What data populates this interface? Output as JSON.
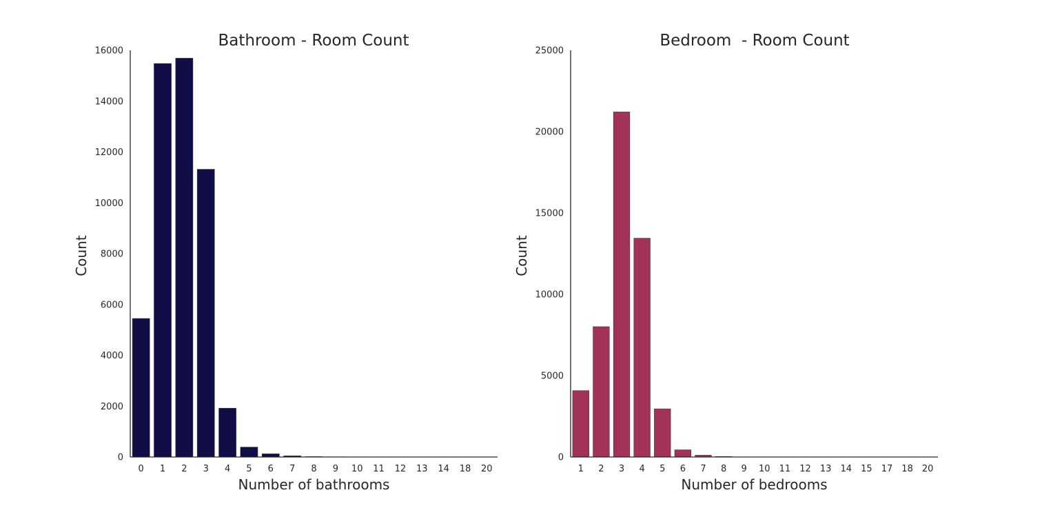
{
  "chart_data": [
    {
      "type": "bar",
      "title": "Bathroom - Room Count",
      "xlabel": "Number of bathrooms",
      "ylabel": "Count",
      "categories": [
        "0",
        "1",
        "2",
        "3",
        "4",
        "5",
        "6",
        "7",
        "8",
        "9",
        "10",
        "11",
        "12",
        "13",
        "14",
        "18",
        "20"
      ],
      "values": [
        5450,
        15480,
        15690,
        11320,
        1920,
        390,
        125,
        45,
        15,
        8,
        3,
        2,
        1,
        1,
        1,
        1,
        1
      ],
      "ylim": [
        0,
        16000
      ],
      "yticks": [
        "0",
        "2000",
        "4000",
        "6000",
        "8000",
        "10000",
        "12000",
        "14000",
        "16000"
      ],
      "color": "#110e47",
      "grid": false
    },
    {
      "type": "bar",
      "title": "Bedroom  - Room Count",
      "xlabel": "Number of bedrooms",
      "ylabel": "Count",
      "categories": [
        "1",
        "2",
        "3",
        "4",
        "5",
        "6",
        "7",
        "8",
        "9",
        "10",
        "11",
        "12",
        "13",
        "14",
        "15",
        "17",
        "18",
        "20"
      ],
      "values": [
        4080,
        8010,
        21210,
        13450,
        2960,
        440,
        110,
        30,
        8,
        4,
        2,
        2,
        1,
        1,
        1,
        1,
        1,
        1
      ],
      "ylim": [
        0,
        25000
      ],
      "yticks": [
        "0",
        "5000",
        "10000",
        "15000",
        "20000",
        "25000"
      ],
      "color": "#a23356",
      "grid": false
    }
  ]
}
